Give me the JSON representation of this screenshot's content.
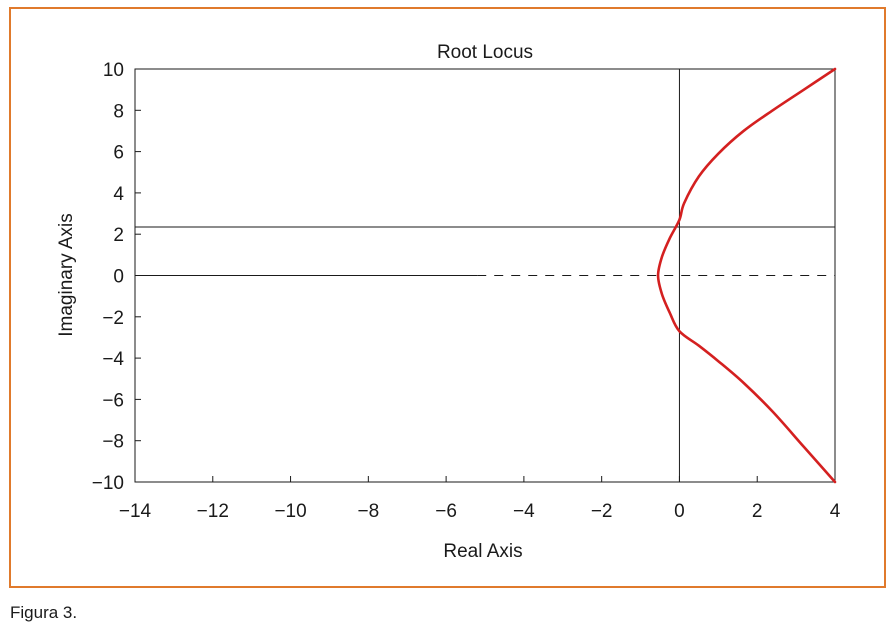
{
  "caption": "Figura 3.",
  "colors": {
    "frame": "#e07a2c",
    "locus": "#d42020",
    "axis": "#1a1a1a"
  },
  "chart_data": {
    "type": "line",
    "title": "Root Locus",
    "xlabel": "Real Axis",
    "ylabel": "Imaginary Axis",
    "xlim": [
      -14,
      4
    ],
    "ylim": [
      -10,
      10
    ],
    "xticks": [
      -14,
      -12,
      -10,
      -8,
      -6,
      -4,
      -2,
      0,
      2,
      4
    ],
    "yticks": [
      -10,
      -8,
      -6,
      -4,
      -2,
      0,
      2,
      4,
      6,
      8,
      10
    ],
    "xtick_labels": [
      "−14",
      "−12",
      "−10",
      "−8",
      "−6",
      "−4",
      "−2",
      "0",
      "2",
      "4"
    ],
    "ytick_labels": [
      "−10",
      "−8",
      "−6",
      "−4",
      "−2",
      "0",
      "2",
      "4",
      "6",
      "8",
      "10"
    ],
    "grid": false,
    "reference_lines": [
      {
        "orientation": "horizontal",
        "y": 0,
        "x_from": -14,
        "x_to": -5.2,
        "style": "solid"
      },
      {
        "orientation": "horizontal",
        "y": 0,
        "x_from": -5.2,
        "x_to": 4,
        "style": "dashed"
      },
      {
        "orientation": "horizontal",
        "y": 2.35,
        "x_from": -14,
        "x_to": 4,
        "style": "solid"
      },
      {
        "orientation": "vertical",
        "x": 0,
        "y_from": -10,
        "y_to": 10,
        "style": "solid"
      }
    ],
    "series": [
      {
        "color": "#d42020",
        "points": [
          [
            4.0,
            10.0
          ],
          [
            3.2,
            9.0
          ],
          [
            2.4,
            8.0
          ],
          [
            1.65,
            7.0
          ],
          [
            1.0,
            5.9
          ],
          [
            0.5,
            4.8
          ],
          [
            0.12,
            3.5
          ],
          [
            0.0,
            2.7
          ],
          [
            -0.25,
            1.8
          ],
          [
            -0.45,
            0.9
          ],
          [
            -0.55,
            0.0
          ],
          [
            -0.45,
            -0.9
          ],
          [
            -0.25,
            -1.8
          ],
          [
            0.0,
            -2.7
          ],
          [
            0.5,
            -3.4
          ],
          [
            1.0,
            -4.15
          ],
          [
            1.65,
            -5.2
          ],
          [
            2.4,
            -6.6
          ],
          [
            3.2,
            -8.3
          ],
          [
            4.0,
            -10.0
          ]
        ]
      }
    ]
  }
}
